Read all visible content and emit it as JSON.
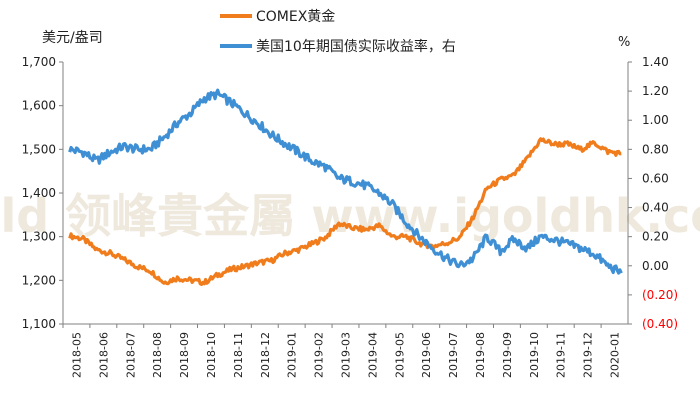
{
  "chart_data": {
    "type": "line",
    "left_axis": {
      "unit_label": "美元/盎司",
      "range": [
        1100,
        1700
      ],
      "ticks": [
        "1,100",
        "1,200",
        "1,300",
        "1,400",
        "1,500",
        "1,600",
        "1,700"
      ]
    },
    "right_axis": {
      "unit_label": "%",
      "range": [
        -0.4,
        1.4
      ],
      "ticks": [
        "(0.40)",
        "(0.20)",
        "0.00",
        "0.20",
        "0.40",
        "0.60",
        "0.80",
        "1.00",
        "1.20",
        "1.40"
      ],
      "negative_tick_color": "#ff0000"
    },
    "x_axis": {
      "categories": [
        "2018-05",
        "2018-06",
        "2018-07",
        "2018-08",
        "2018-09",
        "2018-10",
        "2018-11",
        "2018-12",
        "2019-01",
        "2019-02",
        "2019-03",
        "2019-04",
        "2019-05",
        "2019-06",
        "2019-07",
        "2019-08",
        "2019-09",
        "2019-10",
        "2019-11",
        "2019-12",
        "2020-01"
      ]
    },
    "grid": false,
    "legend_position": "top",
    "watermark": "igold 领峰貴金屬 www.igoldhk.com",
    "series": [
      {
        "name": "COMEX黄金",
        "axis": "left",
        "color": "#f07c1c",
        "x": [
          0,
          0.5,
          1,
          1.5,
          2,
          2.5,
          3,
          3.5,
          4,
          4.5,
          5,
          5.5,
          6,
          6.5,
          7,
          7.5,
          8,
          8.5,
          9,
          9.5,
          10,
          10.5,
          11,
          11.5,
          12,
          12.5,
          13,
          13.5,
          14,
          14.5,
          15,
          15.5,
          16,
          16.5,
          17,
          17.5,
          18,
          18.5,
          19,
          19.5,
          20,
          20.5
        ],
        "values": [
          1302,
          1295,
          1270,
          1262,
          1248,
          1232,
          1222,
          1195,
          1205,
          1200,
          1195,
          1212,
          1225,
          1232,
          1240,
          1245,
          1262,
          1270,
          1283,
          1298,
          1330,
          1320,
          1316,
          1325,
          1300,
          1300,
          1285,
          1278,
          1285,
          1298,
          1345,
          1410,
          1430,
          1440,
          1478,
          1522,
          1512,
          1512,
          1500,
          1515,
          1495,
          1490
        ]
      },
      {
        "name": "美国10年期国债实际收益率，右",
        "axis": "right",
        "color": "#3e8fd4",
        "x": [
          0,
          0.5,
          1,
          1.5,
          2,
          2.5,
          3,
          3.5,
          4,
          4.5,
          5,
          5.5,
          6,
          6.5,
          7,
          7.5,
          8,
          8.5,
          9,
          9.5,
          10,
          10.5,
          11,
          11.5,
          12,
          12.5,
          13,
          13.5,
          14,
          14.5,
          15,
          15.5,
          16,
          16.5,
          17,
          17.5,
          18,
          18.5,
          19,
          19.5,
          20,
          20.5
        ],
        "values": [
          0.8,
          0.78,
          0.72,
          0.78,
          0.82,
          0.8,
          0.8,
          0.88,
          0.98,
          1.05,
          1.15,
          1.18,
          1.12,
          1.05,
          0.98,
          0.9,
          0.84,
          0.78,
          0.72,
          0.68,
          0.6,
          0.58,
          0.55,
          0.5,
          0.42,
          0.3,
          0.2,
          0.12,
          0.05,
          0.0,
          0.05,
          0.2,
          0.1,
          0.18,
          0.12,
          0.2,
          0.18,
          0.15,
          0.12,
          0.08,
          0.0,
          -0.05
        ]
      }
    ]
  }
}
